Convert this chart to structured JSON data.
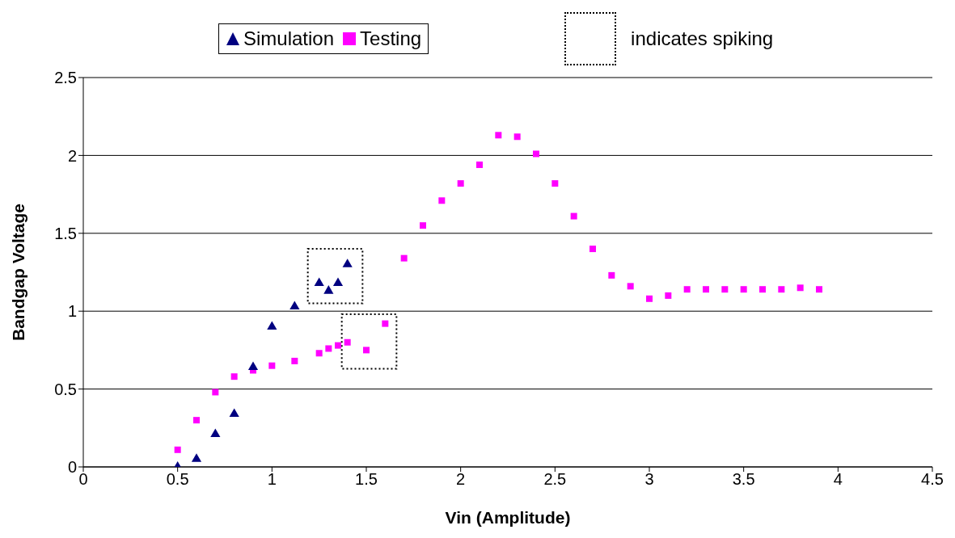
{
  "chart_data": {
    "type": "scatter",
    "xlabel": "Vin (Amplitude)",
    "ylabel": "Bandgap Voltage",
    "xlim": [
      0,
      4.5
    ],
    "xticks": [
      0,
      0.5,
      1,
      1.5,
      2,
      2.5,
      3,
      3.5,
      4,
      4.5
    ],
    "ylim": [
      0,
      2.5
    ],
    "yticks": [
      0,
      0.5,
      1,
      1.5,
      2,
      2.5
    ],
    "grid": "y",
    "legend": "top",
    "annotations": [
      "indicates spiking"
    ],
    "series": [
      {
        "name": "Simulation",
        "color": "#000080",
        "marker": "triangle",
        "x": [
          0.5,
          0.6,
          0.7,
          0.8,
          0.9,
          1.0,
          1.12,
          1.25,
          1.3,
          1.35,
          1.4
        ],
        "values": [
          0.0,
          0.05,
          0.21,
          0.34,
          0.64,
          0.9,
          1.03,
          1.18,
          1.13,
          1.18,
          1.3
        ]
      },
      {
        "name": "Testing",
        "color": "#ff00ff",
        "marker": "square",
        "x": [
          0.5,
          0.6,
          0.7,
          0.8,
          0.9,
          1.0,
          1.12,
          1.25,
          1.3,
          1.35,
          1.4,
          1.5,
          1.6,
          1.7,
          1.8,
          1.9,
          2.0,
          2.1,
          2.2,
          2.3,
          2.4,
          2.5,
          2.6,
          2.7,
          2.8,
          2.9,
          3.0,
          3.1,
          3.2,
          3.3,
          3.4,
          3.5,
          3.6,
          3.7,
          3.8,
          3.9
        ],
        "values": [
          0.11,
          0.3,
          0.48,
          0.58,
          0.62,
          0.65,
          0.68,
          0.73,
          0.76,
          0.78,
          0.8,
          0.75,
          0.92,
          1.34,
          1.55,
          1.71,
          1.82,
          1.94,
          2.13,
          2.12,
          2.01,
          1.82,
          1.61,
          1.4,
          1.23,
          1.16,
          1.08,
          1.1,
          1.14,
          1.14,
          1.14,
          1.14,
          1.14,
          1.14,
          1.15,
          1.14
        ]
      }
    ]
  }
}
